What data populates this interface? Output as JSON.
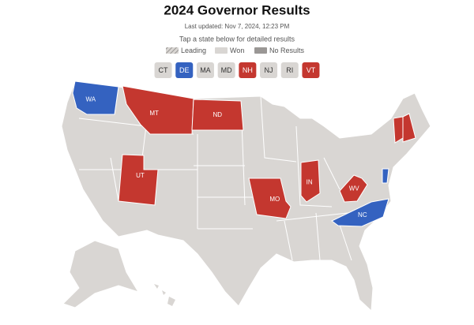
{
  "header": {
    "title": "2024 Governor Results",
    "subtitle": "Last updated: Nov 7, 2024, 12:23 PM",
    "instruction": "Tap a state below for detailed results"
  },
  "legend": [
    {
      "label": "Leading",
      "color": "#b5b2af"
    },
    {
      "label": "Won",
      "color": "#d9d6d3"
    },
    {
      "label": "No Results",
      "color": "#9a9795"
    }
  ],
  "buttons": [
    {
      "label": "CT",
      "color": "#d9d6d3"
    },
    {
      "label": "DE",
      "color": "#3462c0"
    },
    {
      "label": "MA",
      "color": "#d9d6d3"
    },
    {
      "label": "MD",
      "color": "#d9d6d3"
    },
    {
      "label": "NH",
      "color": "#c4372f"
    },
    {
      "label": "NJ",
      "color": "#d9d6d3"
    },
    {
      "label": "RI",
      "color": "#d9d6d3"
    },
    {
      "label": "VT",
      "color": "#c4372f"
    }
  ],
  "map": {
    "states": [
      {
        "label": "WA",
        "color": "#3462c0"
      },
      {
        "label": "MT",
        "color": "#c4372f"
      },
      {
        "label": "ND",
        "color": "#c4372f"
      },
      {
        "label": "UT",
        "color": "#c4372f"
      },
      {
        "label": "MO",
        "color": "#c4372f"
      },
      {
        "label": "IN",
        "color": "#c4372f"
      },
      {
        "label": "WV",
        "color": "#c4372f"
      },
      {
        "label": "NC",
        "color": "#3462c0"
      },
      {
        "color": "#3462c0"
      },
      {
        "color": "#c4372f"
      },
      {
        "color": "#c4372f"
      }
    ]
  }
}
